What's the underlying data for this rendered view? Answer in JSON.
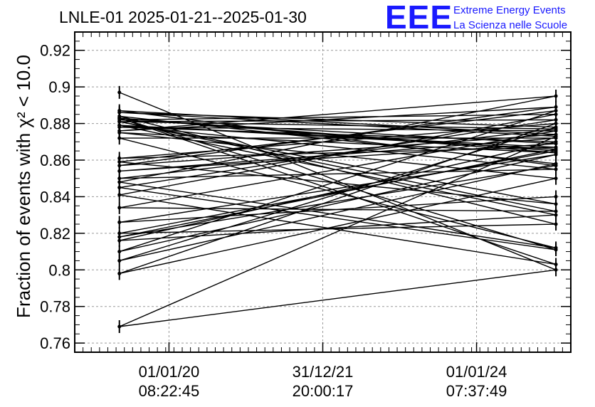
{
  "header": {
    "title": "LNLE-01 2025-01-21--2025-01-30",
    "logo_text": "EEE",
    "logo_line1": "Extreme Energy Events",
    "logo_line2": "La Scienza nelle Scuole"
  },
  "chart_data": {
    "type": "line",
    "title": "LNLE-01 2025-01-21--2025-01-30",
    "ylabel": "Fraction of events with χ² < 10.0",
    "xlabel": "",
    "ylim": [
      0.755,
      0.93
    ],
    "xlim": [
      0,
      1
    ],
    "y_ticks": [
      0.76,
      0.78,
      0.8,
      0.82,
      0.84,
      0.86,
      0.88,
      0.9,
      0.92
    ],
    "x_ticks": [
      {
        "pos": 0.19,
        "line1": "01/01/20",
        "line2": "08:22:45"
      },
      {
        "pos": 0.5,
        "line1": "31/12/21",
        "line2": "20:00:17"
      },
      {
        "pos": 0.81,
        "line1": "01/01/24",
        "line2": "07:37:49"
      }
    ],
    "grid": true,
    "series_note": "many consecutive data points alternating between two time ranges",
    "x": [
      0.09,
      0.97,
      0.09,
      0.97,
      0.09,
      0.97,
      0.09,
      0.97,
      0.09,
      0.97,
      0.09,
      0.97,
      0.09,
      0.97,
      0.09,
      0.97,
      0.09,
      0.97,
      0.09,
      0.97,
      0.09,
      0.97,
      0.09,
      0.97,
      0.09,
      0.97,
      0.09,
      0.97,
      0.09,
      0.97,
      0.09,
      0.97,
      0.09,
      0.97,
      0.09,
      0.97,
      0.09,
      0.97,
      0.09,
      0.97,
      0.09,
      0.97,
      0.09,
      0.97,
      0.09,
      0.97,
      0.09,
      0.97,
      0.09,
      0.97,
      0.09,
      0.97,
      0.09,
      0.97,
      0.09,
      0.97,
      0.09,
      0.97,
      0.09,
      0.97,
      0.09,
      0.97,
      0.09,
      0.97
    ],
    "y": [
      0.897,
      0.8,
      0.769,
      0.873,
      0.886,
      0.878,
      0.805,
      0.858,
      0.884,
      0.825,
      0.82,
      0.865,
      0.883,
      0.811,
      0.845,
      0.882,
      0.881,
      0.832,
      0.834,
      0.876,
      0.878,
      0.87,
      0.816,
      0.83,
      0.879,
      0.867,
      0.861,
      0.88,
      0.798,
      0.85,
      0.875,
      0.864,
      0.883,
      0.803,
      0.841,
      0.885,
      0.882,
      0.869,
      0.854,
      0.872,
      0.872,
      0.812,
      0.848,
      0.895,
      0.876,
      0.889,
      0.857,
      0.874,
      0.887,
      0.857,
      0.818,
      0.866,
      0.879,
      0.855,
      0.85,
      0.877,
      0.881,
      0.836,
      0.859,
      0.887,
      0.81,
      0.863,
      0.826,
      0.84
    ]
  }
}
